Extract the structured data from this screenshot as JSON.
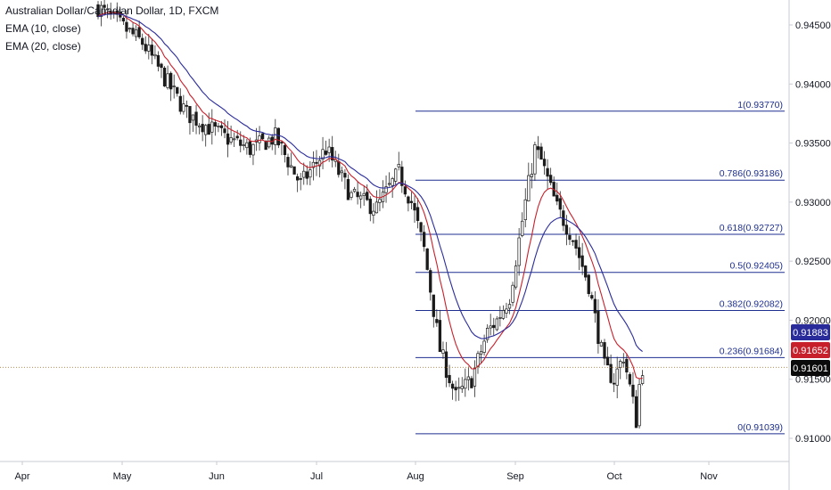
{
  "legend": {
    "title": "Australian Dollar/Canadian Dollar, 1D, FXCM",
    "ema10": "EMA (10, close)",
    "ema20": "EMA (20, close)"
  },
  "chart_data": {
    "type": "candlestick",
    "symbol": "AUDCAD",
    "timeframe": "1D",
    "source": "FXCM",
    "y_axis": {
      "range": [
        0.9065,
        0.9472
      ],
      "ticks": [
        "0.94500",
        "0.94000",
        "0.93500",
        "0.93000",
        "0.92500",
        "0.92000",
        "0.91500",
        "0.91000"
      ]
    },
    "x_axis": {
      "ticks": [
        "Apr",
        "May",
        "Jun",
        "Jul",
        "Aug",
        "Sep",
        "Oct",
        "Nov"
      ]
    },
    "fibonacci": {
      "high": 0.9377,
      "low": 0.91039,
      "levels": [
        {
          "ratio": "1",
          "label": "1(0.93770)",
          "value": 0.9377
        },
        {
          "ratio": "0.786",
          "label": "0.786(0.93186)",
          "value": 0.93186
        },
        {
          "ratio": "0.618",
          "label": "0.618(0.92727)",
          "value": 0.92727
        },
        {
          "ratio": "0.5",
          "label": "0.5(0.92405)",
          "value": 0.92405
        },
        {
          "ratio": "0.382",
          "label": "0.382(0.92082)",
          "value": 0.92082
        },
        {
          "ratio": "0.236",
          "label": "0.236(0.91684)",
          "value": 0.91684
        },
        {
          "ratio": "0",
          "label": "0(0.91039)",
          "value": 0.91039
        }
      ]
    },
    "price_labels": [
      {
        "name": "EMA (20, close)",
        "text": "0.91883",
        "value": 0.91883,
        "color": "#2a2b9b"
      },
      {
        "name": "EMA (10, close)",
        "text": "0.91652",
        "value": 0.91652,
        "color": "#c8202b"
      },
      {
        "name": "Last price",
        "text": "0.91601",
        "value": 0.91601,
        "color": "#0b0b0b"
      }
    ],
    "series": [
      {
        "name": "EMA (10, close)",
        "color": "#c8202b"
      },
      {
        "name": "EMA (20, close)",
        "color": "#2a2b9b"
      }
    ],
    "grid": false,
    "legend_position": "top-left"
  }
}
